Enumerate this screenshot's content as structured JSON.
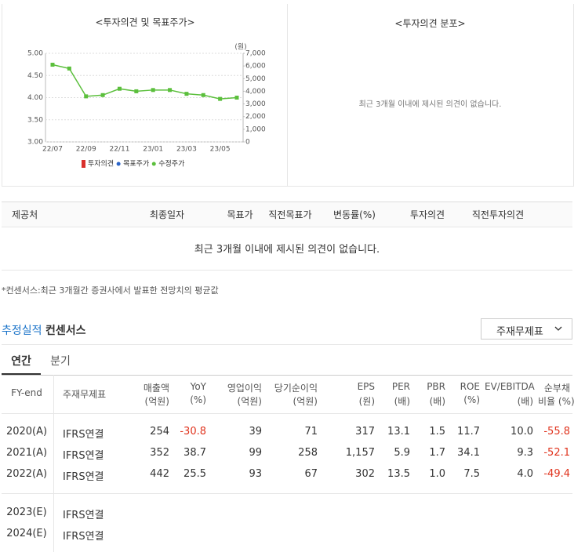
{
  "chart_data": {
    "type": "line",
    "title": "<투자의견 및 목표주가>",
    "y2_label": "(원)",
    "categories": [
      "22/07",
      null,
      "22/09",
      null,
      "22/11",
      null,
      "23/01",
      null,
      "23/03",
      null,
      "23/05",
      null
    ],
    "series": [
      {
        "name": "투자의견",
        "color": "#d9302c",
        "values": [
          null,
          null,
          null,
          null,
          null,
          null,
          null,
          null,
          null,
          null,
          null,
          null
        ]
      },
      {
        "name": "목표주가",
        "color": "#2a64c8",
        "values": [
          null,
          null,
          null,
          null,
          null,
          null,
          null,
          null,
          null,
          null,
          null,
          null
        ]
      },
      {
        "name": "수정주가",
        "color": "#5bbf3c",
        "axis": "y2",
        "values": [
          6100,
          5800,
          3600,
          3700,
          4200,
          4000,
          4100,
          4100,
          3800,
          3700,
          3400,
          3500
        ]
      }
    ],
    "ylim": [
      3,
      5
    ],
    "yticks": [
      {
        "value": 3,
        "label": "3.00"
      },
      {
        "value": 3.5,
        "label": "3.50"
      },
      {
        "value": 4,
        "label": "4.00"
      },
      {
        "value": 4.5,
        "label": "4.50"
      },
      {
        "value": 5,
        "label": "5.00"
      }
    ],
    "y2lim": [
      0,
      7000
    ],
    "y2ticks": [
      0,
      {
        "value": 1000,
        "label": "1,000"
      },
      {
        "value": 2000,
        "label": "2,000"
      },
      {
        "value": 3000,
        "label": "3,000"
      },
      {
        "value": 4000,
        "label": "4,000"
      },
      {
        "value": 5000,
        "label": "5,000"
      },
      {
        "value": 6000,
        "label": "6,000"
      },
      {
        "value": 7000,
        "label": "7,000"
      }
    ],
    "grid": true
  },
  "distribution": {
    "title": "<투자의견 분포>",
    "message": "최근 3개월 이내에 제시된 의견이 없습니다."
  },
  "opinion_table": {
    "headers": [
      "제공처",
      "최종일자",
      "목표가",
      "직전목표가",
      "변동률(%)",
      "투자의견",
      "직전투자의견"
    ],
    "message": "최근 3개월 이내에 제시된 의견이 없습니다."
  },
  "note": "*컨센서스:최근 3개월간 증권사에서 발표한 전망치의 평균값",
  "section": {
    "title_highlight": "추정실적",
    "title": "컨센서스",
    "dropdown": "주재무제표",
    "tabs": [
      "연간",
      "분기"
    ]
  },
  "estimate_table": {
    "headers": [
      [
        "FY-end"
      ],
      [
        "주재무제표"
      ],
      [
        "매출액",
        "(억원)"
      ],
      [
        "YoY",
        "(%)"
      ],
      [
        "영업이익",
        "(억원)"
      ],
      [
        "당기순이익",
        "(억원)"
      ],
      [
        "EPS",
        "(원)"
      ],
      [
        "PER",
        "(배)"
      ],
      [
        "PBR",
        "(배)"
      ],
      [
        "ROE",
        "(%)"
      ],
      [
        "EV/EBITDA",
        "(배)"
      ],
      [
        "순부채",
        "비율 (%)"
      ]
    ],
    "rows": [
      [
        "2020(A)",
        "IFRS연결",
        "254",
        "-30.8",
        "39",
        "71",
        "317",
        "13.1",
        "1.5",
        "11.7",
        "10.0",
        "-55.8"
      ],
      [
        "2021(A)",
        "IFRS연결",
        "352",
        "38.7",
        "99",
        "258",
        "1,157",
        "5.9",
        "1.7",
        "34.1",
        "9.3",
        "-52.1"
      ],
      [
        "2022(A)",
        "IFRS연결",
        "442",
        "25.5",
        "93",
        "67",
        "302",
        "13.5",
        "1.0",
        "7.5",
        "4.0",
        "-49.4"
      ],
      [
        "2023(E)",
        "IFRS연결"
      ],
      [
        "2024(E)",
        "IFRS연결"
      ]
    ]
  }
}
